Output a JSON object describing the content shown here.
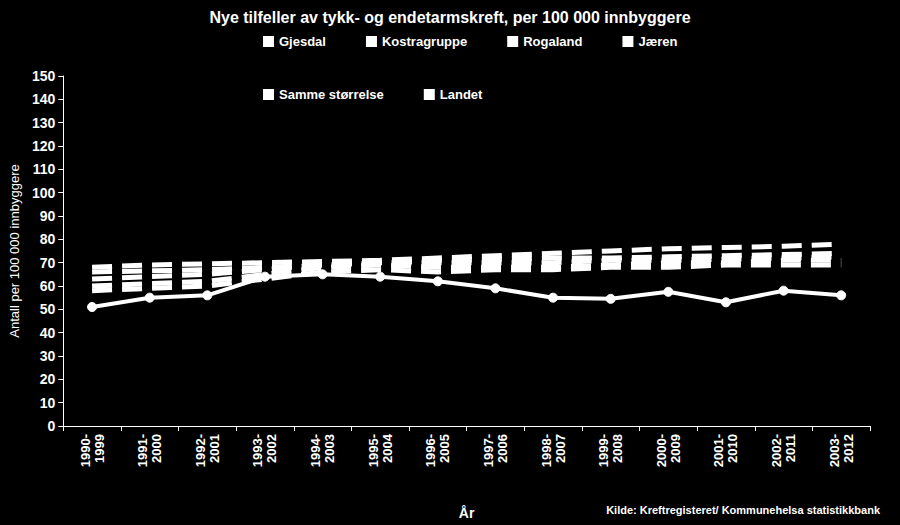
{
  "chart_data": {
    "type": "line",
    "title": "Nye tilfeller av tykk- og endetarmskreft, per 100 000 innbyggere",
    "x_label": "År",
    "y_label": "Antall per 100 000 innbyggere",
    "source": "Kilde: Kreftregisteret/ Kommunehelsa statistikkbank",
    "categories": [
      "1990-1999",
      "1991-2000",
      "1992-2001",
      "1993-2002",
      "1994-2003",
      "1995-2004",
      "1996-2005",
      "1997-2006",
      "1998-2007",
      "1999-2008",
      "2000-2009",
      "2001-2010",
      "2002-2011",
      "2003-2012"
    ],
    "series": [
      {
        "name": "Gjesdal",
        "color": "#ffffff",
        "marker": "circle",
        "line_style": "solid",
        "values": [
          51,
          55,
          56,
          64,
          65,
          64,
          62,
          59,
          55,
          54.5,
          57.5,
          53,
          58,
          56
        ]
      },
      {
        "name": "Kostragruppe",
        "color": "#ffffff",
        "marker": "none",
        "line_style": "dashed",
        "values": [
          66,
          66.5,
          67,
          68,
          69,
          70,
          71,
          71.5,
          72,
          72,
          72.5,
          73,
          73.5,
          74
        ]
      },
      {
        "name": "Rogaland",
        "color": "#ffffff",
        "marker": "none",
        "line_style": "dashed",
        "values": [
          60,
          61,
          62,
          65,
          68,
          69,
          68,
          68,
          68,
          69,
          70,
          70,
          71,
          71
        ]
      },
      {
        "name": "Jæren",
        "color": "#ffffff",
        "marker": "none",
        "line_style": "dashed",
        "values": [
          58,
          59,
          60,
          63,
          66,
          67,
          66,
          67,
          67,
          68,
          68,
          69,
          69,
          69
        ]
      },
      {
        "name": "Samme størrelse",
        "color": "#ffffff",
        "marker": "none",
        "line_style": "dashed",
        "values": [
          63,
          64,
          65,
          67,
          69,
          70,
          70,
          70,
          70,
          71,
          71,
          71.5,
          72,
          72.5
        ]
      },
      {
        "name": "Landet",
        "color": "#ffffff",
        "marker": "none",
        "line_style": "dashed",
        "values": [
          68,
          69,
          69.5,
          70,
          70.5,
          71,
          72,
          73,
          74,
          75,
          76,
          76.5,
          77,
          78
        ]
      }
    ],
    "ylim": [
      0,
      150
    ],
    "yticks": [
      0,
      10,
      20,
      30,
      40,
      50,
      60,
      70,
      80,
      90,
      100,
      110,
      120,
      130,
      140,
      150
    ],
    "grid": false,
    "legend": "top"
  }
}
